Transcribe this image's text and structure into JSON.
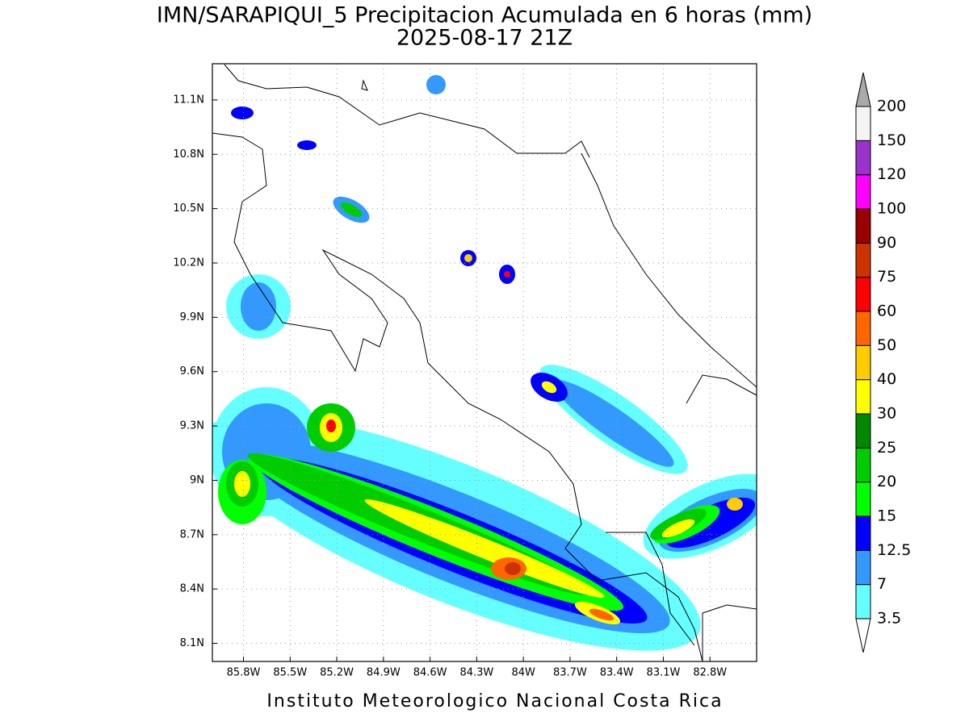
{
  "map": {
    "title": "IMN/SARAPIQUI_5 Precipitacion Acumulada en 6 horas (mm)",
    "subtitle": "2025-08-17 21Z",
    "credit": "Instituto Meteorologico Nacional Costa Rica",
    "lon_range": [
      -86.0,
      -82.5
    ],
    "lat_range": [
      8.0,
      11.3
    ],
    "lon_ticks": [
      {
        "value": -85.8,
        "label": "85.8W"
      },
      {
        "value": -85.5,
        "label": "85.5W"
      },
      {
        "value": -85.2,
        "label": "85.2W"
      },
      {
        "value": -84.9,
        "label": "84.9W"
      },
      {
        "value": -84.6,
        "label": "84.6W"
      },
      {
        "value": -84.3,
        "label": "84.3W"
      },
      {
        "value": -84.0,
        "label": "84W"
      },
      {
        "value": -83.7,
        "label": "83.7W"
      },
      {
        "value": -83.4,
        "label": "83.4W"
      },
      {
        "value": -83.1,
        "label": "83.1W"
      },
      {
        "value": -82.8,
        "label": "82.8W"
      }
    ],
    "lat_ticks": [
      {
        "value": 8.1,
        "label": "8.1N"
      },
      {
        "value": 8.4,
        "label": "8.4N"
      },
      {
        "value": 8.7,
        "label": "8.7N"
      },
      {
        "value": 9.0,
        "label": "9N"
      },
      {
        "value": 9.3,
        "label": "9.3N"
      },
      {
        "value": 9.6,
        "label": "9.6N"
      },
      {
        "value": 9.9,
        "label": "9.9N"
      },
      {
        "value": 10.2,
        "label": "10.2N"
      },
      {
        "value": 10.5,
        "label": "10.5N"
      },
      {
        "value": 10.8,
        "label": "10.8N"
      },
      {
        "value": 11.1,
        "label": "11.1N"
      }
    ],
    "colorbar": {
      "levels": [
        3.5,
        7,
        12.5,
        15,
        20,
        25,
        30,
        40,
        50,
        60,
        75,
        90,
        100,
        120,
        150,
        200
      ],
      "colors": [
        "#66ffff",
        "#3399ff",
        "#0000ff",
        "#00ff00",
        "#00cc00",
        "#008800",
        "#ffff00",
        "#ffcc00",
        "#ff6600",
        "#ff0000",
        "#cc3300",
        "#990000",
        "#ff00ff",
        "#9933cc",
        "#f4f4f4"
      ],
      "under_color": "#ffffff",
      "over_color": "#aaaaaa"
    }
  }
}
